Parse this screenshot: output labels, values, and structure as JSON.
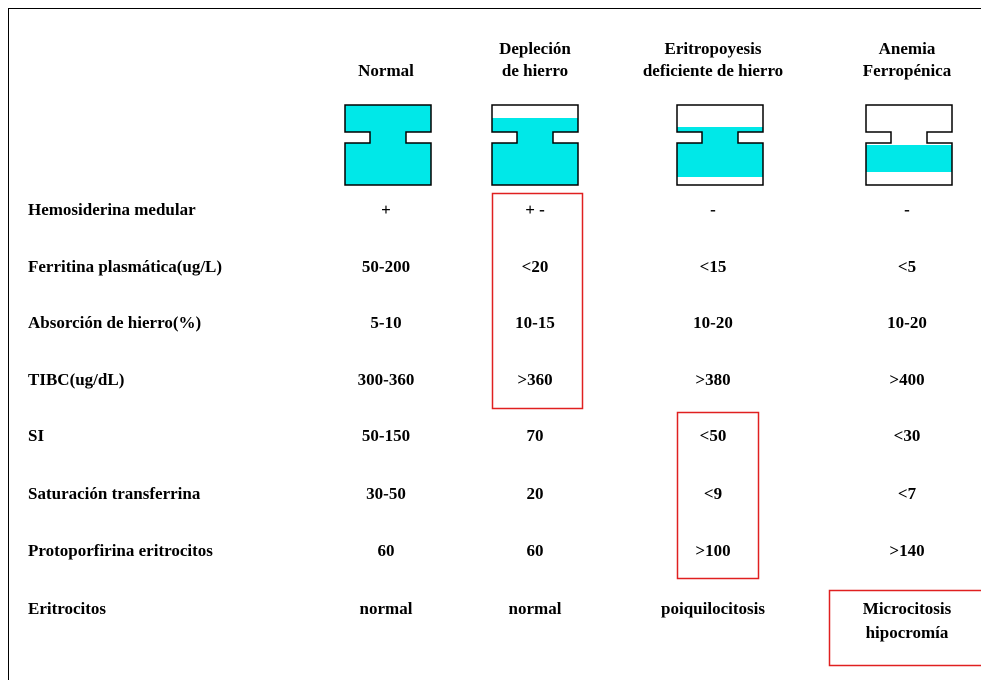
{
  "table": {
    "columns": [
      [
        "Normal"
      ],
      [
        "Depleción",
        "de hierro"
      ],
      [
        "Eritropoyesis",
        "deficiente de hierro"
      ],
      [
        "Anemia",
        "Ferropénica"
      ]
    ],
    "rows": [
      {
        "label": "Hemosiderina medular",
        "cells": [
          "+",
          "+ -",
          "-",
          "-"
        ]
      },
      {
        "label": "Ferritina plasmática(ug/L)",
        "cells": [
          "50-200",
          "<20",
          "<15",
          "<5"
        ]
      },
      {
        "label": "Absorción de hierro(%)",
        "cells": [
          "5-10",
          "10-15",
          "10-20",
          "10-20"
        ]
      },
      {
        "label": "TIBC(ug/dL)",
        "cells": [
          "300-360",
          ">360",
          ">380",
          ">400"
        ]
      },
      {
        "label": "SI",
        "cells": [
          "50-150",
          "70",
          "<50",
          "<30"
        ]
      },
      {
        "label": "Saturación transferrina",
        "cells": [
          "30-50",
          "20",
          "<9",
          "<7"
        ]
      },
      {
        "label": "Protoporfirina eritrocitos",
        "cells": [
          "60",
          "60",
          ">100",
          ">140"
        ]
      },
      {
        "label": "Eritrocitos",
        "cells": [
          "normal",
          "normal",
          "poiquilocitosis",
          [
            "Microcitosis",
            "hipocromía"
          ]
        ]
      }
    ]
  }
}
